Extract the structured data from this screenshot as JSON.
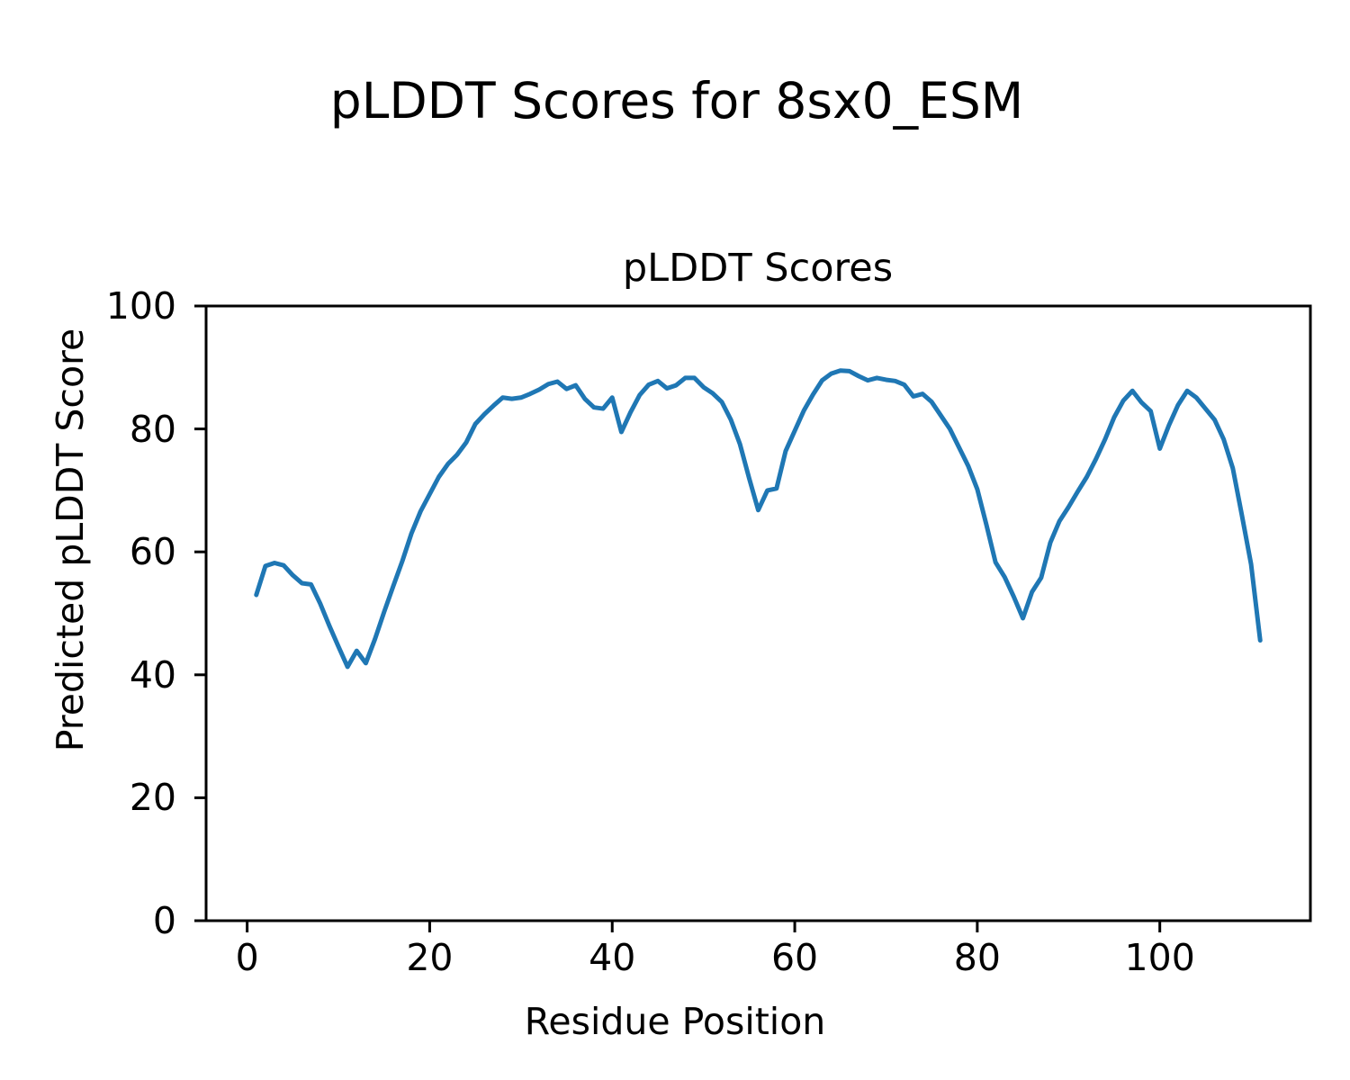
{
  "figure": {
    "suptitle": "pLDDT Scores for 8sx0_ESM"
  },
  "chart_data": {
    "type": "line",
    "title": "pLDDT Scores",
    "xlabel": "Residue Position",
    "ylabel": "Predicted pLDDT Score",
    "xlim": [
      -4.5,
      116.5
    ],
    "ylim": [
      0,
      100
    ],
    "x_ticks": [
      0,
      20,
      40,
      60,
      80,
      100
    ],
    "y_ticks": [
      0,
      20,
      40,
      60,
      80,
      100
    ],
    "grid": false,
    "legend_position": "none",
    "line_color": "#1f77b4",
    "line_width": 5,
    "series": [
      {
        "name": "pLDDT",
        "x": [
          1,
          2,
          3,
          4,
          5,
          6,
          7,
          8,
          9,
          10,
          11,
          12,
          13,
          14,
          15,
          16,
          17,
          18,
          19,
          20,
          21,
          22,
          23,
          24,
          25,
          26,
          27,
          28,
          29,
          30,
          31,
          32,
          33,
          34,
          35,
          36,
          37,
          38,
          39,
          40,
          41,
          42,
          43,
          44,
          45,
          46,
          47,
          48,
          49,
          50,
          51,
          52,
          53,
          54,
          55,
          56,
          57,
          58,
          59,
          60,
          61,
          62,
          63,
          64,
          65,
          66,
          67,
          68,
          69,
          70,
          71,
          72,
          73,
          74,
          75,
          76,
          77,
          78,
          79,
          80,
          81,
          82,
          83,
          84,
          85,
          86,
          87,
          88,
          89,
          90,
          91,
          92,
          93,
          94,
          95,
          96,
          97,
          98,
          99,
          100,
          101,
          102,
          103,
          104,
          105,
          106,
          107,
          108,
          109,
          110,
          111
        ],
        "values": [
          53.0,
          57.7,
          58.2,
          57.8,
          56.2,
          54.9,
          54.7,
          51.6,
          48.0,
          44.6,
          41.3,
          43.9,
          41.9,
          45.8,
          50.2,
          54.4,
          58.5,
          63.0,
          66.6,
          69.4,
          72.2,
          74.3,
          75.8,
          77.8,
          80.8,
          82.4,
          83.8,
          85.1,
          84.9,
          85.1,
          85.7,
          86.4,
          87.3,
          87.7,
          86.5,
          87.1,
          84.9,
          83.5,
          83.3,
          85.1,
          79.5,
          82.7,
          85.5,
          87.2,
          87.8,
          86.6,
          87.1,
          88.3,
          88.3,
          86.8,
          85.8,
          84.4,
          81.5,
          77.5,
          72.0,
          66.8,
          70.0,
          70.3,
          76.4,
          79.7,
          83.0,
          85.6,
          87.9,
          89.0,
          89.5,
          89.4,
          88.6,
          87.9,
          88.3,
          88.0,
          87.8,
          87.2,
          85.3,
          85.7,
          84.4,
          82.2,
          80.0,
          77.0,
          74.0,
          70.2,
          64.4,
          58.3,
          55.9,
          52.7,
          49.2,
          53.5,
          55.8,
          61.5,
          65.0,
          67.3,
          69.8,
          72.2,
          75.1,
          78.3,
          81.9,
          84.6,
          86.2,
          84.3,
          82.9,
          76.8,
          80.6,
          83.9,
          86.2,
          85.1,
          83.3,
          81.5,
          78.3,
          73.6,
          65.9,
          58.0,
          45.6
        ]
      }
    ]
  }
}
